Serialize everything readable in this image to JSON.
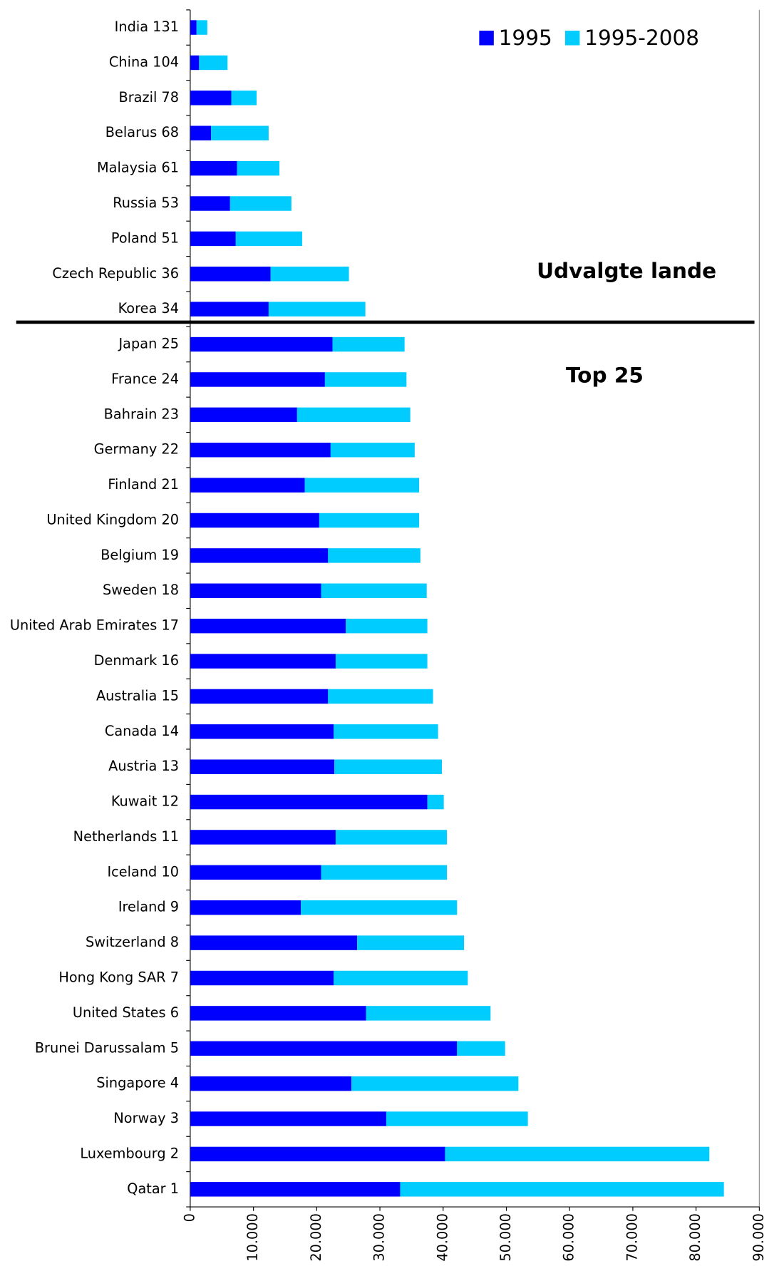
{
  "chart_data": {
    "type": "stacked_bar_horizontal",
    "categories": [
      "India 131",
      "China 104",
      "Brazil 78",
      "Belarus 68",
      "Malaysia 61",
      "Russia 53",
      "Poland 51",
      "Czech Republic 36",
      "Korea 34",
      "Japan 25",
      "France 24",
      "Bahrain 23",
      "Germany 22",
      "Finland 21",
      "United Kingdom 20",
      "Belgium 19",
      "Sweden 18",
      "United Arab Emirates 17",
      "Denmark 16",
      "Australia 15",
      "Canada 14",
      "Austria 13",
      "Kuwait 12",
      "Netherlands 11",
      "Iceland 10",
      "Ireland 9",
      "Switzerland 8",
      "Hong Kong SAR 7",
      "United States 6",
      "Brunei Darussalam 5",
      "Singapore 4",
      "Norway 3",
      "Luxembourg 2",
      "Qatar 1"
    ],
    "series": [
      {
        "name": "1995",
        "color": "#0000ff",
        "values": [
          1000,
          1400,
          6500,
          3300,
          7400,
          6300,
          7200,
          12700,
          12400,
          22500,
          21300,
          16900,
          22200,
          18100,
          20400,
          21800,
          20700,
          24600,
          23000,
          21800,
          22700,
          22800,
          37500,
          23000,
          20700,
          17500,
          26400,
          22700,
          27800,
          42200,
          25500,
          31000,
          40300,
          33200
        ]
      },
      {
        "name": "1995-2008",
        "color": "#00ccff",
        "values": [
          1700,
          4500,
          4000,
          9100,
          6700,
          9700,
          10500,
          12400,
          15300,
          11400,
          12900,
          17900,
          13300,
          18100,
          15800,
          14600,
          16700,
          12900,
          14500,
          16600,
          16500,
          17000,
          2600,
          17600,
          19900,
          24700,
          16900,
          21200,
          19700,
          7600,
          26400,
          22400,
          41800,
          51200
        ]
      }
    ],
    "xlim": [
      0,
      90000
    ],
    "xticks": [
      0,
      {
        "value": 10000,
        "label": "10.000"
      },
      {
        "value": 20000,
        "label": "20.000"
      },
      {
        "value": 30000,
        "label": "30.000"
      },
      {
        "value": 40000,
        "label": "40.000"
      },
      {
        "value": 50000,
        "label": "50.000"
      },
      {
        "value": 60000,
        "label": "60.000"
      },
      {
        "value": 70000,
        "label": "70.000"
      },
      {
        "value": 80000,
        "label": "80.000"
      },
      {
        "value": 90000,
        "label": "90.000"
      }
    ],
    "annotations": [
      "Udvalgte lande",
      "Top 25"
    ],
    "legend": "top-right"
  }
}
